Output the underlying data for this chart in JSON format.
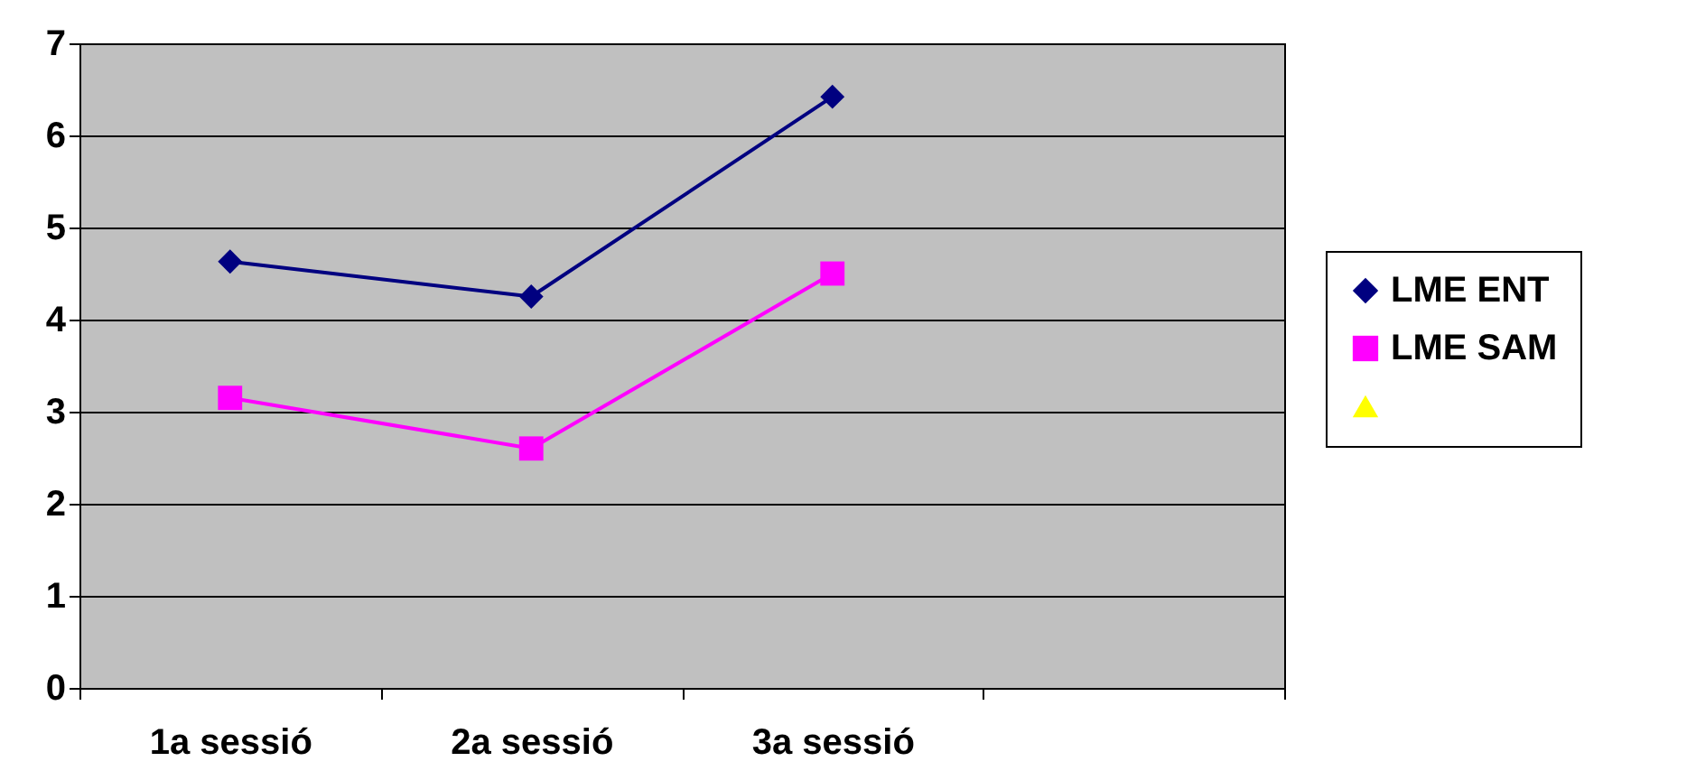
{
  "chart_data": {
    "type": "line",
    "categories": [
      "1a sessió",
      "2a sessió",
      "3a sessió",
      null
    ],
    "series": [
      {
        "name": "LME ENT",
        "color": "#000080",
        "marker": "diamond",
        "values": [
          4.63,
          4.25,
          6.42,
          null
        ]
      },
      {
        "name": "LME SAM",
        "color": "#ff00ff",
        "marker": "square",
        "values": [
          3.15,
          2.6,
          4.5,
          null
        ]
      },
      {
        "color": "#ffff00",
        "marker": "triangle",
        "values": [
          null,
          null,
          null,
          null
        ]
      }
    ],
    "ylim": [
      0,
      7
    ],
    "yticks": [
      0,
      1,
      2,
      3,
      4,
      5,
      6,
      7
    ],
    "grid": "y",
    "legend": "right"
  }
}
